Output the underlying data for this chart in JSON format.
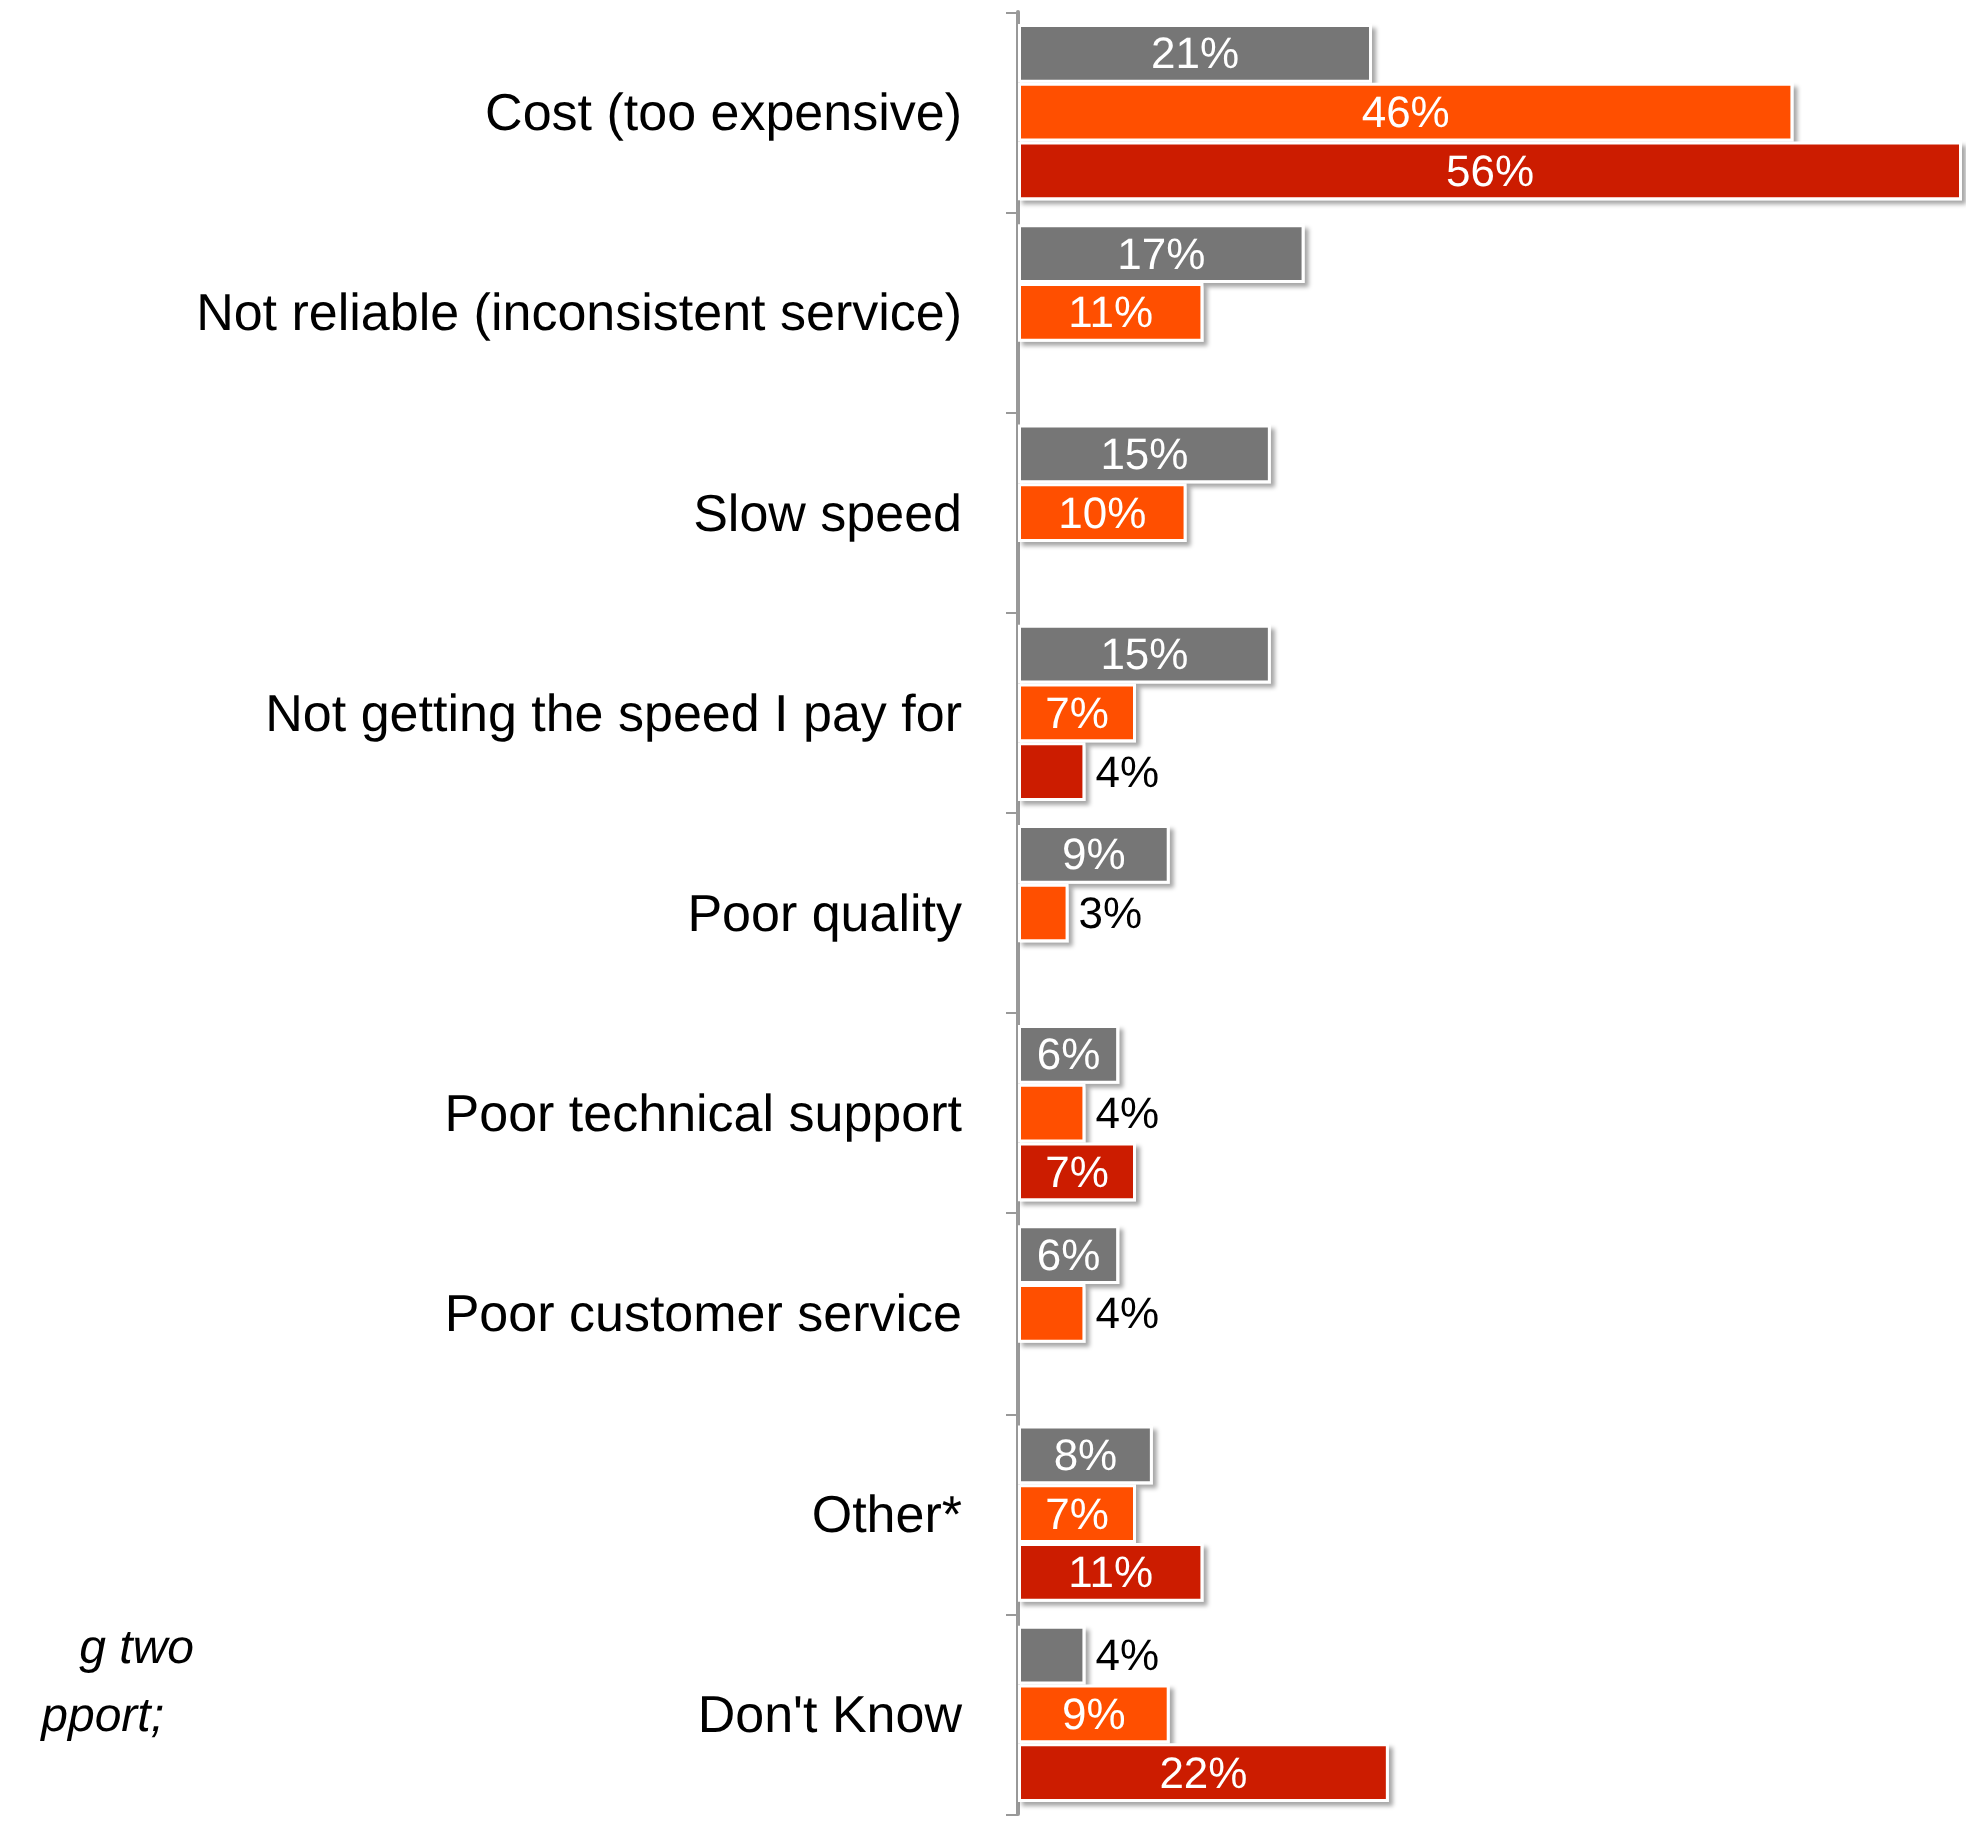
{
  "chart_data": {
    "type": "bar",
    "orientation": "horizontal",
    "categories": [
      "Cost (too expensive)",
      "Not reliable (inconsistent service)",
      "Slow speed",
      "Not getting the speed I pay for",
      "Poor quality",
      "Poor technical support",
      "Poor customer service",
      "Other*",
      "Don't Know"
    ],
    "series": [
      {
        "color": "#767676",
        "values": [
          21,
          17,
          15,
          15,
          9,
          6,
          6,
          8,
          4
        ],
        "value_labels": [
          "21%",
          "17%",
          "15%",
          "15%",
          "9%",
          "6%",
          "6%",
          "8%",
          "4%"
        ]
      },
      {
        "color": "#ff4f00",
        "values": [
          46,
          11,
          10,
          7,
          3,
          4,
          4,
          7,
          9
        ],
        "value_labels": [
          "46%",
          "11%",
          "10%",
          "7%",
          "3%",
          "4%",
          "4%",
          "7%",
          "9%"
        ]
      },
      {
        "color": "#cc1f00",
        "values": [
          56,
          null,
          null,
          4,
          null,
          7,
          null,
          11,
          22
        ],
        "value_labels": [
          "56%",
          null,
          null,
          "4%",
          null,
          "7%",
          null,
          "11%",
          "22%"
        ]
      }
    ],
    "tick_labels": "y",
    "annotations": [
      "g two",
      "pport;"
    ]
  }
}
